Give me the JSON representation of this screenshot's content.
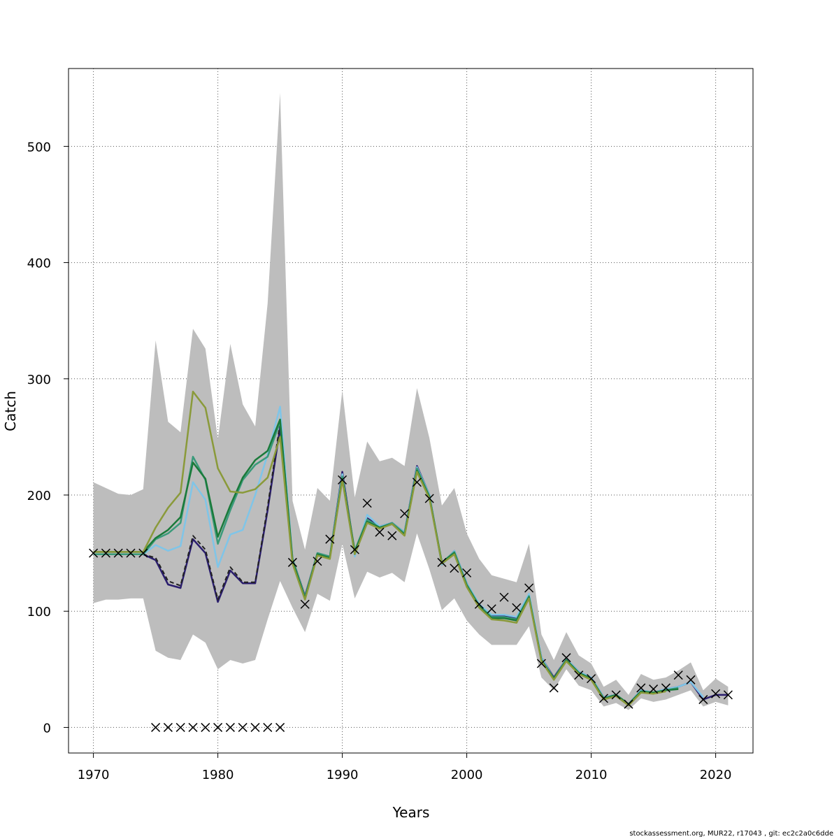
{
  "chart_data": {
    "type": "line",
    "xlabel": "Years",
    "ylabel": "Catch",
    "xlim": [
      1968,
      2023
    ],
    "ylim": [
      -22,
      567
    ],
    "x_ticks": [
      1970,
      1980,
      1990,
      2000,
      2010,
      2020
    ],
    "y_ticks": [
      0,
      100,
      200,
      300,
      400,
      500
    ],
    "grid": true,
    "band": {
      "x": [
        1970,
        1971,
        1972,
        1973,
        1974,
        1975,
        1976,
        1977,
        1978,
        1979,
        1980,
        1981,
        1982,
        1983,
        1984,
        1985,
        1986,
        1987,
        1988,
        1989,
        1990,
        1991,
        1992,
        1993,
        1994,
        1995,
        1996,
        1997,
        1998,
        1999,
        2000,
        2001,
        2002,
        2003,
        2004,
        2005,
        2006,
        2007,
        2008,
        2009,
        2010,
        2011,
        2012,
        2013,
        2014,
        2015,
        2016,
        2017,
        2018,
        2019,
        2020,
        2021
      ],
      "upper": [
        211,
        206,
        201,
        200,
        205,
        333,
        263,
        254,
        343,
        326,
        248,
        330,
        278,
        259,
        365,
        546,
        195,
        153,
        206,
        195,
        290,
        198,
        246,
        229,
        232,
        225,
        292,
        249,
        191,
        206,
        167,
        145,
        131,
        128,
        125,
        158,
        80,
        58,
        82,
        62,
        55,
        35,
        41,
        28,
        46,
        41,
        43,
        49,
        56,
        32,
        42,
        35
      ],
      "lower": [
        107,
        110,
        110,
        111,
        111,
        66,
        60,
        58,
        80,
        73,
        50,
        58,
        55,
        58,
        93,
        126,
        103,
        82,
        115,
        109,
        158,
        111,
        134,
        129,
        133,
        125,
        167,
        136,
        101,
        111,
        92,
        80,
        71,
        71,
        71,
        87,
        43,
        32,
        50,
        36,
        32,
        18,
        21,
        15,
        25,
        22,
        24,
        28,
        32,
        18,
        22,
        19
      ]
    },
    "series": [
      {
        "color": "#2a1d6e",
        "x": [
          1970,
          1971,
          1972,
          1973,
          1974,
          1975,
          1976,
          1977,
          1978,
          1979,
          1980,
          1981,
          1982,
          1983,
          1984,
          1985,
          1986,
          1987,
          1988,
          1989,
          1990,
          1991,
          1992,
          1993,
          1994,
          1995,
          1996,
          1997,
          1998,
          1999,
          2000,
          2001,
          2002,
          2003,
          2004,
          2005,
          2006,
          2007,
          2008,
          2009,
          2010,
          2011,
          2012,
          2013,
          2014,
          2015,
          2016,
          2017,
          2018,
          2019,
          2020,
          2021
        ],
        "y": [
          149,
          149,
          149,
          149,
          149,
          144,
          123,
          120,
          162,
          150,
          108,
          135,
          124,
          124,
          187,
          258,
          145,
          113,
          150,
          147,
          220,
          150,
          180,
          173,
          176,
          168,
          225,
          200,
          140,
          152,
          124,
          105,
          96,
          96,
          94,
          113,
          60,
          43,
          59,
          48,
          43,
          26,
          28,
          20,
          32,
          30,
          33,
          35,
          39,
          24,
          28,
          28
        ]
      },
      {
        "color": "#222222",
        "dashed": true,
        "x": [
          1970,
          1971,
          1972,
          1973,
          1974,
          1975,
          1976,
          1977,
          1978,
          1979,
          1980,
          1981,
          1982,
          1983,
          1984,
          1985
        ],
        "y": [
          149,
          149,
          149,
          149,
          149,
          146,
          126,
          122,
          165,
          153,
          110,
          138,
          125,
          125,
          190,
          262
        ]
      },
      {
        "color": "#7fc5e8",
        "x": [
          1970,
          1971,
          1972,
          1973,
          1974,
          1975,
          1976,
          1977,
          1978,
          1979,
          1980,
          1981,
          1982,
          1983,
          1984,
          1985,
          1986,
          1987,
          1988,
          1989,
          1990,
          1991,
          1992,
          1993,
          1994,
          1995,
          1996,
          1997,
          1998,
          1999,
          2000,
          2001,
          2002,
          2003,
          2004,
          2005,
          2006,
          2007,
          2008,
          2009,
          2010,
          2011,
          2012,
          2013,
          2014,
          2015,
          2016,
          2017,
          2018,
          2019
        ],
        "y": [
          149,
          149,
          149,
          149,
          149,
          157,
          152,
          156,
          211,
          196,
          138,
          166,
          170,
          200,
          235,
          276,
          145,
          112,
          150,
          147,
          218,
          147,
          183,
          173,
          176,
          168,
          224,
          200,
          140,
          152,
          124,
          106,
          97,
          97,
          95,
          115,
          60,
          42,
          59,
          48,
          43,
          26,
          28,
          20,
          32,
          30,
          33,
          35,
          39,
          26
        ]
      },
      {
        "color": "#3a9a7a",
        "x": [
          1970,
          1971,
          1972,
          1973,
          1974,
          1975,
          1976,
          1977,
          1978,
          1979,
          1980,
          1981,
          1982,
          1983,
          1984,
          1985,
          1986,
          1987,
          1988,
          1989,
          1990,
          1991,
          1992,
          1993,
          1994,
          1995,
          1996,
          1997,
          1998,
          1999,
          2000,
          2001,
          2002,
          2003,
          2004,
          2005,
          2006,
          2007,
          2008,
          2009,
          2010,
          2011,
          2012,
          2013,
          2014,
          2015,
          2016,
          2017
        ],
        "y": [
          149,
          149,
          149,
          149,
          149,
          162,
          167,
          176,
          233,
          213,
          158,
          187,
          213,
          226,
          233,
          263,
          145,
          112,
          150,
          147,
          216,
          152,
          179,
          172,
          176,
          167,
          223,
          199,
          142,
          151,
          123,
          105,
          95,
          95,
          93,
          113,
          58,
          42,
          58,
          47,
          42,
          25,
          28,
          20,
          31,
          30,
          32,
          34
        ]
      },
      {
        "color": "#1a7a3a",
        "x": [
          1970,
          1971,
          1972,
          1973,
          1974,
          1975,
          1976,
          1977,
          1978,
          1979,
          1980,
          1981,
          1982,
          1983,
          1984,
          1985,
          1986,
          1987,
          1988,
          1989,
          1990,
          1991,
          1992,
          1993,
          1994,
          1995,
          1996,
          1997,
          1998,
          1999,
          2000,
          2001,
          2002,
          2003,
          2004,
          2005,
          2006,
          2007,
          2008,
          2009,
          2010,
          2011,
          2012,
          2013,
          2014,
          2015,
          2016,
          2017
        ],
        "y": [
          151,
          151,
          151,
          151,
          151,
          163,
          170,
          181,
          228,
          214,
          164,
          191,
          215,
          230,
          238,
          265,
          143,
          111,
          149,
          146,
          214,
          151,
          177,
          172,
          175,
          166,
          221,
          198,
          142,
          150,
          122,
          104,
          94,
          94,
          92,
          112,
          58,
          42,
          58,
          47,
          42,
          25,
          28,
          20,
          31,
          30,
          32,
          33
        ]
      },
      {
        "color": "#8a9a3a",
        "x": [
          1970,
          1971,
          1972,
          1973,
          1974,
          1975,
          1976,
          1977,
          1978,
          1979,
          1980,
          1981,
          1982,
          1983,
          1984,
          1985,
          1986,
          1987,
          1988,
          1989,
          1990,
          1991,
          1992,
          1993,
          1994,
          1995,
          1996,
          1997,
          1998,
          1999,
          2000,
          2001,
          2002,
          2003,
          2004,
          2005,
          2006,
          2007,
          2008,
          2009,
          2010,
          2011,
          2012,
          2013,
          2014,
          2015,
          2016
        ],
        "y": [
          151,
          151,
          151,
          151,
          151,
          172,
          189,
          202,
          289,
          275,
          223,
          203,
          202,
          205,
          215,
          250,
          141,
          110,
          148,
          145,
          213,
          149,
          176,
          171,
          175,
          165,
          220,
          197,
          141,
          149,
          121,
          103,
          93,
          92,
          90,
          111,
          57,
          41,
          57,
          46,
          41,
          24,
          27,
          19,
          30,
          29,
          31
        ]
      }
    ],
    "observed": {
      "x": [
        1970,
        1971,
        1972,
        1973,
        1974,
        1975,
        1976,
        1977,
        1978,
        1979,
        1980,
        1981,
        1982,
        1983,
        1984,
        1985,
        1986,
        1987,
        1988,
        1989,
        1990,
        1991,
        1992,
        1993,
        1994,
        1995,
        1996,
        1997,
        1998,
        1999,
        2000,
        2001,
        2002,
        2003,
        2004,
        2005,
        2006,
        2007,
        2008,
        2009,
        2010,
        2011,
        2012,
        2013,
        2014,
        2015,
        2016,
        2017,
        2018,
        2019,
        2020,
        2021
      ],
      "y": [
        150,
        150,
        150,
        150,
        150,
        0,
        0,
        0,
        0,
        0,
        0,
        0,
        0,
        0,
        0,
        0,
        142,
        106,
        143,
        162,
        213,
        153,
        193,
        168,
        165,
        184,
        211,
        197,
        142,
        137,
        133,
        106,
        102,
        112,
        103,
        120,
        55,
        34,
        60,
        45,
        42,
        25,
        28,
        20,
        34,
        33,
        34,
        45,
        41,
        24,
        29,
        28
      ]
    }
  },
  "footer": "stockassessment.org, MUR22, r17043 , git: ec2c2a0c6dde"
}
